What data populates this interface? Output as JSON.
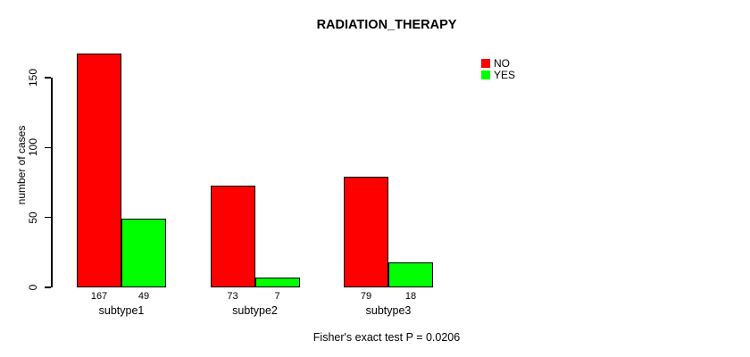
{
  "chart_data": {
    "type": "bar",
    "title": "RADIATION_THERAPY",
    "ylabel": "number of cases",
    "xlabel": "",
    "categories": [
      "subtype1",
      "subtype2",
      "subtype3"
    ],
    "series": [
      {
        "name": "NO",
        "color": "#ff0000",
        "values": [
          167,
          73,
          79
        ]
      },
      {
        "name": "YES",
        "color": "#00ff00",
        "values": [
          49,
          7,
          18
        ]
      }
    ],
    "yticks": [
      0,
      50,
      100,
      150
    ],
    "ylim": [
      0,
      150
    ],
    "grid": false,
    "legend_position": "top-right",
    "bar_value_labels_shown": true,
    "annotation": "Fisher's exact test P = 0.0206"
  }
}
